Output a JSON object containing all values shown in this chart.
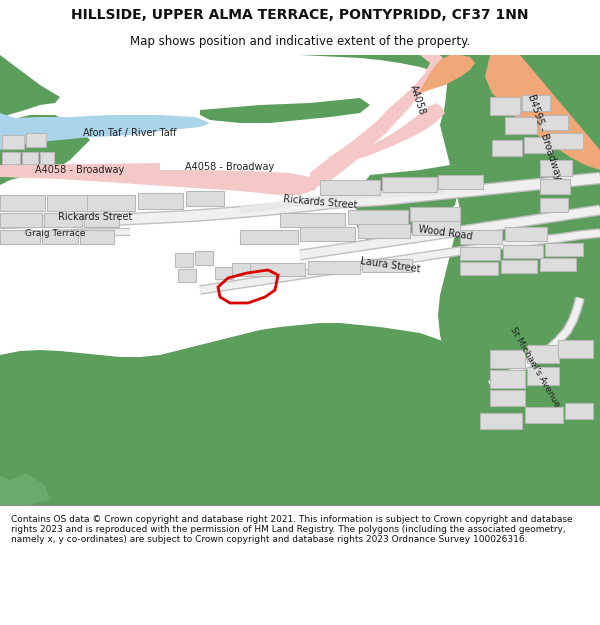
{
  "title_line1": "HILLSIDE, UPPER ALMA TERRACE, PONTYPRIDD, CF37 1NN",
  "title_line2": "Map shows position and indicative extent of the property.",
  "footer_text": "Contains OS data © Crown copyright and database right 2021. This information is subject to Crown copyright and database rights 2023 and is reproduced with the permission of HM Land Registry. The polygons (including the associated geometry, namely x, y co-ordinates) are subject to Crown copyright and database rights 2023 Ordnance Survey 100026316.",
  "bg_color": "#ffffff",
  "map_bg": "#f0f0f0",
  "green_color": "#5c9e5c",
  "river_color": "#aad4ea",
  "road_pink": "#f5c8c8",
  "road_salmon": "#f0a878",
  "building_fill": "#dcdcdc",
  "building_edge": "#b8b8b8",
  "red_plot": "#dd0000",
  "text_dark": "#222222"
}
